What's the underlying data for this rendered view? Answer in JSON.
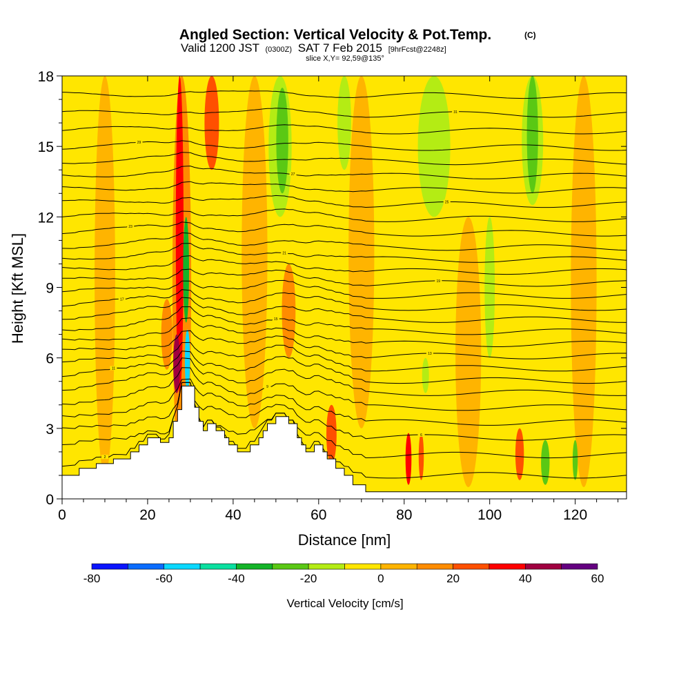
{
  "header": {
    "title": "Angled Section: Vertical Velocity & Pot.Temp.",
    "title_units": "(C)",
    "valid_prefix": "Valid 1200 JST",
    "valid_utc": "(0300Z)",
    "valid_date": "SAT 7 Feb 2015",
    "forecast_info": "[9hrFcst@2248z]",
    "slice_info": "slice X,Y= 92,59@135°"
  },
  "chart_data": {
    "type": "heatmap",
    "xlabel": "Distance [nm]",
    "ylabel": "Height [Kft MSL]",
    "xlim": [
      0,
      132
    ],
    "ylim": [
      0,
      18
    ],
    "x_ticks": [
      0,
      20,
      40,
      60,
      80,
      100,
      120
    ],
    "y_ticks": [
      0,
      3,
      6,
      9,
      12,
      15,
      18
    ],
    "background_value_cm_s": 0,
    "colorbar": {
      "label": "Vertical Velocity [cm/s]",
      "ticks": [
        -80,
        -60,
        -40,
        -20,
        0,
        20,
        40,
        60
      ],
      "bins": [
        {
          "from": -80,
          "to": -70,
          "color": "#0a14ff"
        },
        {
          "from": -70,
          "to": -60,
          "color": "#0a6cff"
        },
        {
          "from": -60,
          "to": -50,
          "color": "#0ad8ff"
        },
        {
          "from": -50,
          "to": -40,
          "color": "#0ae0a0"
        },
        {
          "from": -40,
          "to": -30,
          "color": "#14b428"
        },
        {
          "from": -30,
          "to": -20,
          "color": "#5ac814"
        },
        {
          "from": -20,
          "to": -10,
          "color": "#b4ec14"
        },
        {
          "from": -10,
          "to": 0,
          "color": "#ffe600"
        },
        {
          "from": 0,
          "to": 10,
          "color": "#ffb400"
        },
        {
          "from": 10,
          "to": 20,
          "color": "#ff8c00"
        },
        {
          "from": 20,
          "to": 30,
          "color": "#ff5000"
        },
        {
          "from": 30,
          "to": 40,
          "color": "#ff0000"
        },
        {
          "from": 40,
          "to": 50,
          "color": "#a00040"
        },
        {
          "from": 50,
          "to": 60,
          "color": "#640080"
        }
      ]
    },
    "terrain_profile": [
      [
        0,
        1.0
      ],
      [
        4,
        1.0
      ],
      [
        4,
        1.3
      ],
      [
        8,
        1.3
      ],
      [
        8,
        1.5
      ],
      [
        12,
        1.5
      ],
      [
        12,
        1.7
      ],
      [
        16,
        1.7
      ],
      [
        16,
        2.0
      ],
      [
        18,
        2.0
      ],
      [
        18,
        2.3
      ],
      [
        20,
        2.3
      ],
      [
        20,
        2.6
      ],
      [
        23,
        2.6
      ],
      [
        23,
        2.4
      ],
      [
        25,
        2.4
      ],
      [
        25,
        2.6
      ],
      [
        26,
        2.6
      ],
      [
        26,
        3.3
      ],
      [
        27,
        3.3
      ],
      [
        27,
        3.8
      ],
      [
        28,
        3.8
      ],
      [
        28,
        4.8
      ],
      [
        31,
        4.8
      ],
      [
        31,
        3.9
      ],
      [
        32,
        3.9
      ],
      [
        32,
        3.3
      ],
      [
        33,
        3.3
      ],
      [
        33,
        2.9
      ],
      [
        34,
        2.9
      ],
      [
        34,
        3.2
      ],
      [
        36,
        3.2
      ],
      [
        36,
        2.9
      ],
      [
        38,
        2.9
      ],
      [
        38,
        2.6
      ],
      [
        39,
        2.6
      ],
      [
        39,
        2.3
      ],
      [
        41,
        2.3
      ],
      [
        41,
        2.0
      ],
      [
        44,
        2.0
      ],
      [
        44,
        2.3
      ],
      [
        46,
        2.3
      ],
      [
        46,
        2.6
      ],
      [
        47,
        2.6
      ],
      [
        47,
        2.9
      ],
      [
        48,
        2.9
      ],
      [
        48,
        3.2
      ],
      [
        50,
        3.2
      ],
      [
        50,
        3.5
      ],
      [
        53,
        3.5
      ],
      [
        53,
        3.2
      ],
      [
        55,
        3.2
      ],
      [
        55,
        2.6
      ],
      [
        56,
        2.6
      ],
      [
        56,
        2.3
      ],
      [
        57,
        2.3
      ],
      [
        57,
        2.0
      ],
      [
        59,
        2.0
      ],
      [
        59,
        2.3
      ],
      [
        61,
        2.3
      ],
      [
        61,
        2.0
      ],
      [
        62,
        2.0
      ],
      [
        62,
        1.7
      ],
      [
        64,
        1.7
      ],
      [
        64,
        1.3
      ],
      [
        66,
        1.3
      ],
      [
        66,
        1.0
      ],
      [
        68,
        1.0
      ],
      [
        68,
        0.6
      ],
      [
        71,
        0.6
      ],
      [
        71,
        0.3
      ],
      [
        132,
        0.3
      ]
    ],
    "velocity_features": [
      {
        "x": 28,
        "y_from": 0.5,
        "y_to": 18,
        "half_width": 2.2,
        "value": 15
      },
      {
        "x": 27.5,
        "y_from": 4.5,
        "y_to": 18,
        "half_width": 0.9,
        "value": 35
      },
      {
        "x": 26.8,
        "y_from": 4.5,
        "y_to": 7.0,
        "half_width": 0.8,
        "value": 45
      },
      {
        "x": 29.3,
        "y_from": 4.6,
        "y_to": 7.2,
        "half_width": 0.6,
        "value": -55
      },
      {
        "x": 29,
        "y_from": 7.5,
        "y_to": 12.0,
        "half_width": 0.7,
        "value": -35
      },
      {
        "x": 35,
        "y_from": 14.0,
        "y_to": 18,
        "half_width": 1.7,
        "value": 25
      },
      {
        "x": 24.5,
        "y_from": 5.5,
        "y_to": 8.5,
        "half_width": 1.3,
        "value": 15
      },
      {
        "x": 51.5,
        "y_from": 13.0,
        "y_to": 17.5,
        "half_width": 1.4,
        "value": -25
      },
      {
        "x": 51,
        "y_from": 12.0,
        "y_to": 18,
        "half_width": 2.7,
        "value": -15
      },
      {
        "x": 66,
        "y_from": 14.0,
        "y_to": 18,
        "half_width": 1.6,
        "value": -15
      },
      {
        "x": 87,
        "y_from": 12.0,
        "y_to": 18,
        "half_width": 3.8,
        "value": -15
      },
      {
        "x": 110,
        "y_from": 13.0,
        "y_to": 18,
        "half_width": 1.3,
        "value": -25
      },
      {
        "x": 110,
        "y_from": 12.5,
        "y_to": 18,
        "half_width": 2.5,
        "value": -15
      },
      {
        "x": 63,
        "y_from": 1.5,
        "y_to": 4.0,
        "half_width": 1.2,
        "value": 25
      },
      {
        "x": 81,
        "y_from": 0.6,
        "y_to": 2.8,
        "half_width": 0.7,
        "value": 35
      },
      {
        "x": 84,
        "y_from": 0.8,
        "y_to": 2.8,
        "half_width": 0.6,
        "value": 25
      },
      {
        "x": 107,
        "y_from": 0.8,
        "y_to": 3.0,
        "half_width": 1.0,
        "value": 25
      },
      {
        "x": 113,
        "y_from": 0.6,
        "y_to": 2.5,
        "half_width": 1.0,
        "value": -25
      },
      {
        "x": 120,
        "y_from": 0.8,
        "y_to": 2.5,
        "half_width": 0.6,
        "value": -25
      },
      {
        "x": 85,
        "y_from": 4.5,
        "y_to": 6.0,
        "half_width": 0.8,
        "value": -15
      },
      {
        "x": 53,
        "y_from": 6.0,
        "y_to": 10.0,
        "half_width": 1.6,
        "value": 15
      },
      {
        "x": 10,
        "y_from": 1.0,
        "y_to": 18,
        "half_width": 2.4,
        "value": 5
      },
      {
        "x": 45,
        "y_from": 3.0,
        "y_to": 18,
        "half_width": 3.0,
        "value": 5
      },
      {
        "x": 70,
        "y_from": 3.0,
        "y_to": 18,
        "half_width": 3.0,
        "value": 5
      },
      {
        "x": 95,
        "y_from": 0.5,
        "y_to": 12.0,
        "half_width": 3.0,
        "value": 5
      },
      {
        "x": 122,
        "y_from": 0.5,
        "y_to": 18,
        "half_width": 3.0,
        "value": 5
      },
      {
        "x": 100,
        "y_from": 6.0,
        "y_to": 12.0,
        "half_width": 1.2,
        "value": -15
      }
    ],
    "theta_isotherms": {
      "label_stride": 2,
      "lines": [
        {
          "value": 2,
          "h": 1.5
        },
        {
          "value": 4,
          "h": 2.3
        },
        {
          "value": 6,
          "h": 3.0
        },
        {
          "value": 8,
          "h": 3.6
        },
        {
          "value": 9,
          "h": 4.2
        },
        {
          "value": 10,
          "h": 4.8
        },
        {
          "value": 11,
          "h": 5.3
        },
        {
          "value": 12,
          "h": 5.8
        },
        {
          "value": 13,
          "h": 6.3
        },
        {
          "value": 14,
          "h": 6.8
        },
        {
          "value": 15,
          "h": 7.3
        },
        {
          "value": 16,
          "h": 7.8
        },
        {
          "value": 17,
          "h": 8.3
        },
        {
          "value": 18,
          "h": 8.8
        },
        {
          "value": 19,
          "h": 9.3
        },
        {
          "value": 20,
          "h": 9.8
        },
        {
          "value": 21,
          "h": 10.3
        },
        {
          "value": 22,
          "h": 10.8
        },
        {
          "value": 23,
          "h": 11.4
        },
        {
          "value": 24,
          "h": 12.0
        },
        {
          "value": 25,
          "h": 12.6
        },
        {
          "value": 26,
          "h": 13.2
        },
        {
          "value": 27,
          "h": 13.8
        },
        {
          "value": 28,
          "h": 14.4
        },
        {
          "value": 29,
          "h": 15.0
        },
        {
          "value": 30,
          "h": 15.7
        },
        {
          "value": 31,
          "h": 16.4
        },
        {
          "value": 32,
          "h": 17.2
        }
      ]
    }
  }
}
